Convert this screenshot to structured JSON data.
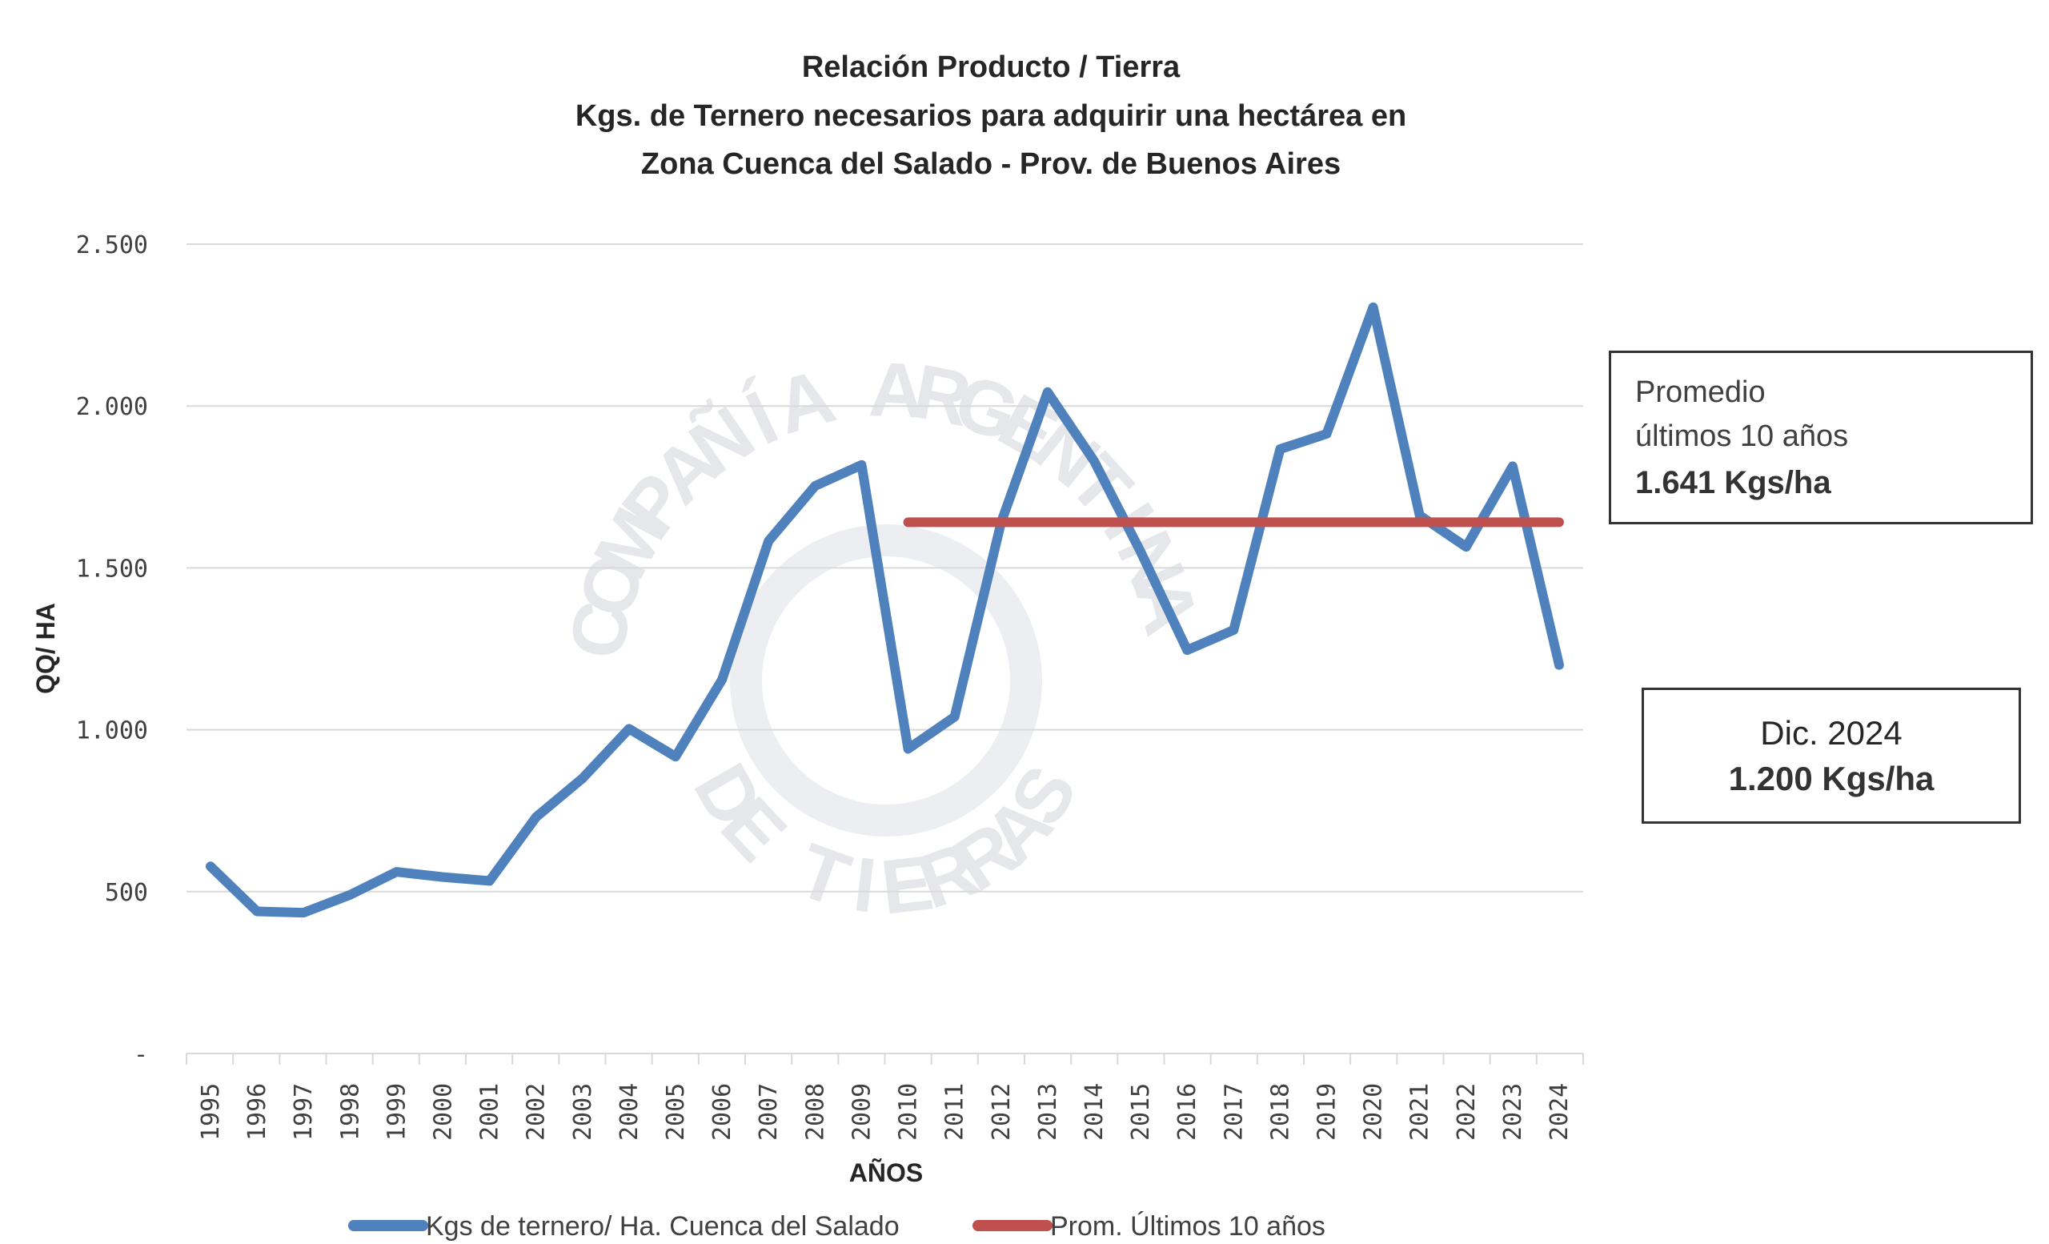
{
  "chart_data": {
    "type": "line",
    "title": [
      "Relación Producto / Tierra",
      "Kgs. de Ternero  necesarios para adquirir una hectárea en",
      "Zona Cuenca del Salado - Prov. de Buenos Aires"
    ],
    "xlabel": "AÑOS",
    "ylabel": "QQ/ HA",
    "ylim": [
      0,
      2500
    ],
    "y_ticks": [
      0,
      500,
      1000,
      1500,
      2000,
      2500
    ],
    "y_tick_labels": [
      "-",
      "500",
      "1.000",
      "1.500",
      "2.000",
      "2.500"
    ],
    "grid": true,
    "legend_position": "bottom",
    "x": [
      "1995",
      "1996",
      "1997",
      "1998",
      "1999",
      "2000",
      "2001",
      "2002",
      "2003",
      "2004",
      "2005",
      "2006",
      "2007",
      "2008",
      "2009",
      "2010",
      "2011",
      "2012",
      "2013",
      "2014",
      "2015",
      "2016",
      "2017",
      "2018",
      "2019",
      "2020",
      "2021",
      "2022",
      "2023",
      "2024"
    ],
    "series": [
      {
        "name": "Kgs de ternero/ Ha. Cuenca del Salado",
        "color": "#4f81bd",
        "values": [
          578,
          439,
          435,
          490,
          561,
          545,
          533,
          730,
          850,
          1003,
          917,
          1155,
          1583,
          1753,
          1818,
          941,
          1040,
          1640,
          2043,
          1830,
          1550,
          1246,
          1308,
          1867,
          1914,
          2305,
          1662,
          1565,
          1814,
          1200
        ]
      },
      {
        "name": "Prom. Últimos 10 años",
        "color": "#c0504d",
        "x_range": [
          "2010",
          "2024"
        ],
        "value": 1641
      }
    ],
    "annotations": [
      {
        "lines": [
          "Promedio",
          "últimos 10 años"
        ],
        "value": "1.641 Kgs/ha"
      },
      {
        "lines": [
          "Dic. 2024"
        ],
        "value": "1.200 Kgs/ha"
      }
    ],
    "watermark": {
      "top": "COMPAÑÍA ARGENTINA",
      "bottom": "DE TIERRAS"
    }
  }
}
